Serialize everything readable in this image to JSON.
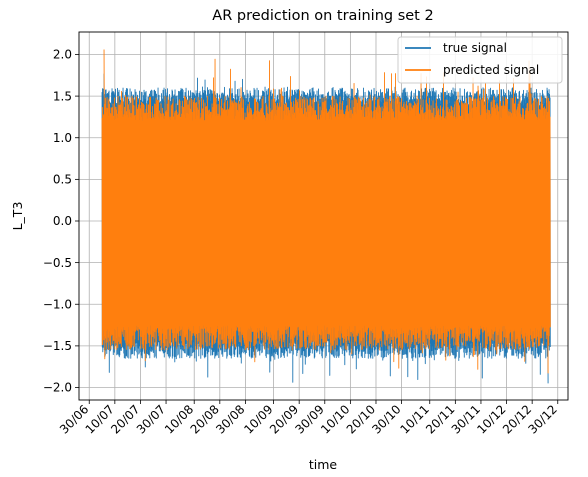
{
  "chart_data": {
    "type": "line",
    "title": "AR prediction on training set 2",
    "xlabel": "time",
    "ylabel": "L_T3",
    "x_ticks": [
      "30/06",
      "10/07",
      "20/07",
      "30/07",
      "10/08",
      "20/08",
      "30/08",
      "10/09",
      "20/09",
      "30/09",
      "10/10",
      "20/10",
      "30/10",
      "10/11",
      "20/11",
      "30/11",
      "10/12",
      "20/12",
      "30/12"
    ],
    "x_range": [
      "2023-06-26",
      "2024-01-03"
    ],
    "data_range": [
      "2023-07-05",
      "2023-12-27"
    ],
    "y_ticks": [
      "2.0",
      "1.5",
      "1.0",
      "0.5",
      "0.0",
      "−0.5",
      "−1.0",
      "−1.5",
      "−2.0"
    ],
    "ylim": [
      -2.15,
      2.27
    ],
    "grid": true,
    "legend_position": "top-right",
    "series": [
      {
        "name": "true signal",
        "color": "#1f77b4",
        "typical_range": [
          -1.65,
          1.6
        ],
        "max": 1.77,
        "min": -1.95
      },
      {
        "name": "predicted signal",
        "color": "#ff7f0e",
        "typical_range": [
          -1.55,
          1.5
        ],
        "max": 2.06,
        "min": -1.83
      }
    ]
  }
}
